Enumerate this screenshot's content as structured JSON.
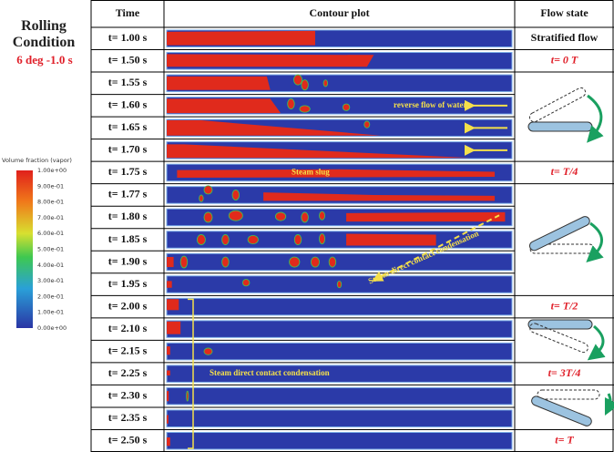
{
  "legend_panel": {
    "title": "Rolling Condition",
    "condition": "6 deg -1.0 s",
    "colorbar_label": "Volume fraction (vapor)",
    "colorbar_ticks": [
      "1.00e+00",
      "9.00e-01",
      "8.00e-01",
      "7.00e-01",
      "6.00e-01",
      "5.00e-01",
      "4.00e-01",
      "3.00e-01",
      "2.00e-01",
      "1.00e-01",
      "0.00e+00"
    ]
  },
  "table": {
    "headers": [
      "Time",
      "Contour plot",
      "Flow state"
    ],
    "times": [
      "t= 1.00 s",
      "t= 1.50 s",
      "t= 1.55 s",
      "t= 1.60 s",
      "t= 1.65 s",
      "t= 1.70 s",
      "t= 1.75 s",
      "t= 1.77 s",
      "t= 1.80 s",
      "t= 1.85 s",
      "t= 1.90 s",
      "t= 1.95 s",
      "t= 2.00 s",
      "t= 2.10 s",
      "t= 2.15 s",
      "t= 2.25 s",
      "t= 2.30 s",
      "t= 2.35 s",
      "t= 2.50 s"
    ],
    "flow_states": [
      "Stratified flow",
      "t= 0 T",
      "t= T/4",
      "t= T/2",
      "t= 3T/4",
      "t= T"
    ]
  },
  "annotations": [
    "reverse flow of water",
    "Steam slug",
    "Steam direct contact condensation",
    "Steam direct contact condensation"
  ]
}
